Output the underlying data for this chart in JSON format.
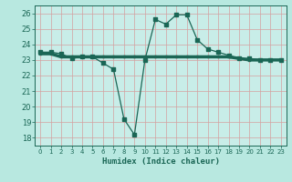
{
  "xlabel": "Humidex (Indice chaleur)",
  "bg_color": "#b8e8e0",
  "plot_bg_color": "#c8ede8",
  "grid_color": "#d4a0a0",
  "line_color": "#1a6655",
  "xlim": [
    -0.5,
    23.5
  ],
  "ylim": [
    17.5,
    26.5
  ],
  "yticks": [
    18,
    19,
    20,
    21,
    22,
    23,
    24,
    25,
    26
  ],
  "xticks": [
    0,
    1,
    2,
    3,
    4,
    5,
    6,
    7,
    8,
    9,
    10,
    11,
    12,
    13,
    14,
    15,
    16,
    17,
    18,
    19,
    20,
    21,
    22,
    23
  ],
  "line1_x": [
    0,
    1,
    2,
    3,
    4,
    5,
    6,
    7,
    8,
    9,
    10,
    11,
    12,
    13,
    14,
    15,
    16,
    17,
    18,
    19,
    20,
    21,
    22,
    23
  ],
  "line1_y": [
    23.5,
    23.5,
    23.4,
    23.1,
    23.2,
    23.2,
    22.8,
    22.4,
    19.2,
    18.2,
    23.0,
    25.6,
    25.3,
    25.9,
    25.9,
    24.3,
    23.7,
    23.5,
    23.3,
    23.1,
    23.1,
    23.0,
    23.0,
    23.0
  ],
  "line2_x": [
    0,
    1,
    2,
    3,
    4,
    5,
    6,
    7,
    8,
    9,
    10,
    11,
    12,
    13,
    14,
    15,
    16,
    17,
    18,
    19,
    20,
    21,
    22,
    23
  ],
  "line2_y": [
    23.4,
    23.4,
    23.2,
    23.2,
    23.2,
    23.2,
    23.2,
    23.2,
    23.2,
    23.2,
    23.2,
    23.2,
    23.2,
    23.2,
    23.2,
    23.2,
    23.2,
    23.2,
    23.2,
    23.1,
    23.0,
    23.0,
    23.0,
    23.0
  ]
}
